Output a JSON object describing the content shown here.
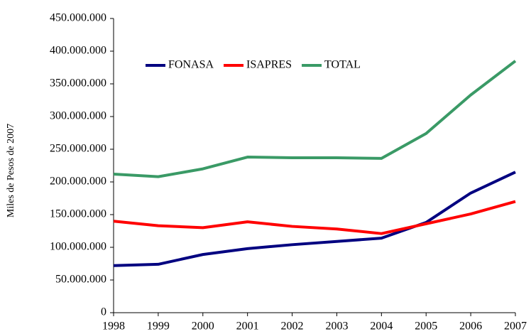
{
  "chart_data": {
    "type": "line",
    "y_label": "Miles de Pesos de 2007",
    "categories": [
      "1998",
      "1999",
      "2000",
      "2001",
      "2002",
      "2003",
      "2004",
      "2005",
      "2006",
      "2007"
    ],
    "series": [
      {
        "name": "FONASA",
        "color": "#000080",
        "values": [
          72000000,
          74000000,
          89000000,
          98000000,
          104000000,
          109000000,
          114000000,
          138000000,
          183000000,
          215000000
        ]
      },
      {
        "name": "ISAPRES",
        "color": "#ff0000",
        "values": [
          140000000,
          133000000,
          130000000,
          139000000,
          132000000,
          128000000,
          121000000,
          136000000,
          151000000,
          170000000
        ]
      },
      {
        "name": "TOTAL",
        "color": "#3a9a66",
        "values": [
          212000000,
          208000000,
          220000000,
          238000000,
          237000000,
          237000000,
          236000000,
          274000000,
          333000000,
          385000000
        ]
      }
    ],
    "ylim": [
      0,
      450000000
    ],
    "yticks": [
      0,
      {
        "value": 50000000,
        "label": "50.000.000"
      },
      {
        "value": 100000000,
        "label": "100.000.000"
      },
      {
        "value": 150000000,
        "label": "150.000.000"
      },
      {
        "value": 200000000,
        "label": "200.000.000"
      },
      {
        "value": 250000000,
        "label": "250.000.000"
      },
      {
        "value": 300000000,
        "label": "300.000.000"
      },
      {
        "value": 350000000,
        "label": "350.000.000"
      },
      {
        "value": 400000000,
        "label": "400.000.000"
      },
      {
        "value": 450000000,
        "label": "450.000.000"
      }
    ],
    "grid": false,
    "legend": "top-left"
  }
}
